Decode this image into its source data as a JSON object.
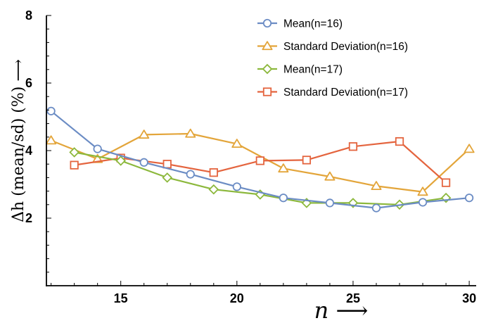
{
  "chart_data": {
    "type": "line",
    "xlabel": "n ⟶",
    "ylabel": "Δh (mean/sd) (%) ⟶",
    "xlim": [
      11.8,
      30.3
    ],
    "ylim": [
      0,
      8
    ],
    "x_ticks": [
      15,
      20,
      25,
      30
    ],
    "y_ticks": [
      2,
      4,
      6,
      8
    ],
    "legend_position": "top-right",
    "series": [
      {
        "name": "Mean(n=16)",
        "color": "#6b8cc4",
        "marker": "circle",
        "x": [
          12,
          14,
          16,
          18,
          20,
          22,
          24,
          26,
          28,
          30
        ],
        "y": [
          5.17,
          4.05,
          3.65,
          3.3,
          2.93,
          2.6,
          2.45,
          2.3,
          2.47,
          2.6
        ]
      },
      {
        "name": "Standard Deviation(n=16)",
        "color": "#e3a53a",
        "marker": "triangle",
        "x": [
          12,
          14,
          16,
          18,
          20,
          22,
          24,
          26,
          28,
          30
        ],
        "y": [
          4.3,
          3.75,
          4.47,
          4.5,
          4.2,
          3.47,
          3.23,
          2.95,
          2.78,
          4.05
        ]
      },
      {
        "name": "Mean(n=17)",
        "color": "#8cb83c",
        "marker": "diamond",
        "x": [
          13,
          15,
          17,
          19,
          21,
          23,
          25,
          27,
          29
        ],
        "y": [
          3.95,
          3.7,
          3.2,
          2.85,
          2.7,
          2.45,
          2.45,
          2.4,
          2.6
        ]
      },
      {
        "name": "Standard Deviation(n=17)",
        "color": "#e4643e",
        "marker": "square",
        "x": [
          13,
          15,
          17,
          19,
          21,
          23,
          25,
          27,
          29
        ],
        "y": [
          3.57,
          3.78,
          3.6,
          3.35,
          3.7,
          3.72,
          4.12,
          4.27,
          3.05
        ]
      }
    ]
  }
}
